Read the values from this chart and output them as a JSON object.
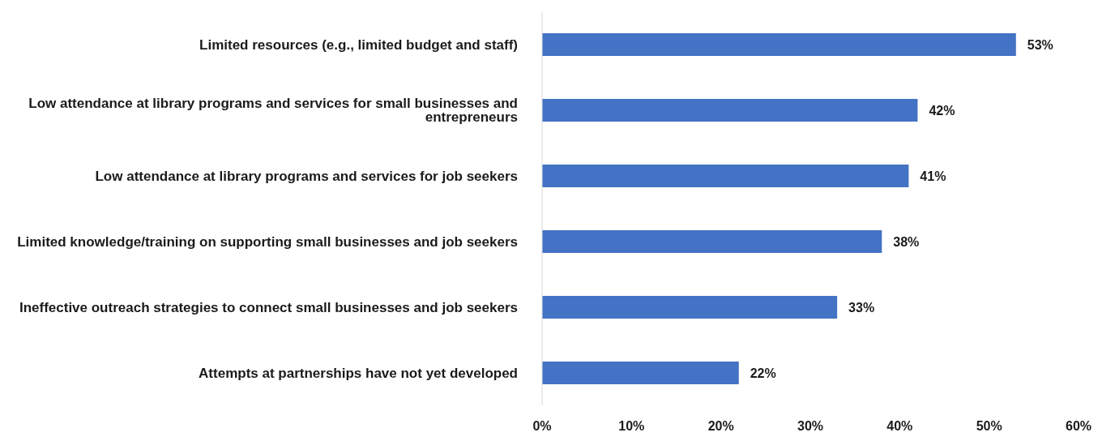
{
  "chart_data": {
    "type": "bar",
    "orientation": "horizontal",
    "categories": [
      "Limited resources (e.g., limited budget and staff)",
      "Low attendance at library programs and services for small businesses and entrepreneurs",
      "Low attendance at library programs and services for job seekers",
      "Limited knowledge/training on supporting small businesses and job seekers",
      "Ineffective outreach strategies to connect small businesses and job seekers",
      "Attempts at partnerships have not yet developed"
    ],
    "values": [
      53,
      42,
      41,
      38,
      33,
      22
    ],
    "value_labels": [
      "53%",
      "42%",
      "41%",
      "38%",
      "33%",
      "22%"
    ],
    "color": "#4472c4",
    "xlim": [
      0,
      60
    ],
    "xticks": [
      {
        "value": 0,
        "label": "0%"
      },
      {
        "value": 10,
        "label": "10%"
      },
      {
        "value": 20,
        "label": "20%"
      },
      {
        "value": 30,
        "label": "30%"
      },
      {
        "value": 40,
        "label": "40%"
      },
      {
        "value": 50,
        "label": "50%"
      },
      {
        "value": 60,
        "label": "60%"
      }
    ],
    "grid": false,
    "legend": false
  }
}
